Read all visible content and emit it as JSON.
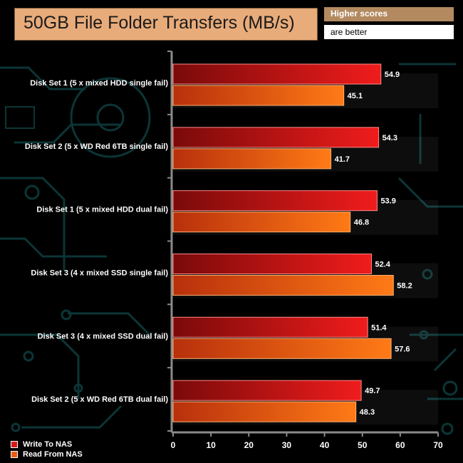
{
  "header": {
    "title": "50GB File Folder Transfers (MB/s)",
    "note_line1": "Higher scores",
    "note_line2": "are better"
  },
  "colors": {
    "background": "#000000",
    "circuit": "#0c3536",
    "write": "#d81818",
    "read": "#ef5a10"
  },
  "chart_data": {
    "type": "bar",
    "orientation": "horizontal",
    "title": "50GB File Folder Transfers (MB/s)",
    "categories": [
      "Disk Set 1 (5 x mixed HDD single fail)",
      "Disk Set 2 (5 x WD Red 6TB single fail)",
      "Disk Set 1 (5 x mixed HDD dual fail)",
      "Disk Set 3 (4 x mixed SSD single fail)",
      "Disk Set 3 (4 x mixed SSD dual fail)",
      "Disk Set 2 (5 x WD Red 6TB dual fail)"
    ],
    "series": [
      {
        "name": "Write To NAS",
        "values": [
          54.9,
          54.3,
          53.9,
          52.4,
          51.4,
          49.7
        ]
      },
      {
        "name": "Read From NAS",
        "values": [
          45.1,
          41.7,
          46.8,
          58.2,
          57.6,
          48.3
        ]
      }
    ],
    "xlim": [
      0,
      70
    ],
    "xticks": [
      0,
      10,
      20,
      30,
      40,
      50,
      60,
      70
    ],
    "xlabel": "",
    "ylabel": "",
    "legend": "bottom-left",
    "grid": false
  }
}
